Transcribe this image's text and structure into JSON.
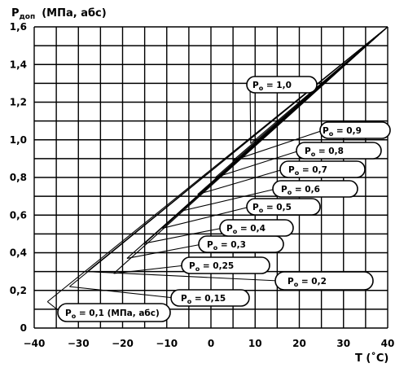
{
  "chart_data": {
    "type": "line",
    "ylabel_main": "P",
    "ylabel_sub": "доп",
    "ylabel_units": "(МПа, абс)",
    "xlabel": "T (˚C)",
    "xlim": [
      -40,
      40
    ],
    "ylim": [
      0,
      1.6
    ],
    "x_ticks": [
      "−40",
      "−30",
      "−20",
      "−10",
      "0",
      "10",
      "20",
      "30",
      "40"
    ],
    "y_ticks": [
      "0",
      "0,2",
      "0,4",
      "0,6",
      "0,8",
      "1,0",
      "1,2",
      "1,4",
      "1,6"
    ],
    "grid": true,
    "converge_point": [
      40,
      1.6
    ],
    "series": [
      {
        "name": "P",
        "sub": "o",
        "text": " = 0,1 (МПа, абс)",
        "start": [
          -37,
          0.14
        ]
      },
      {
        "name": "P",
        "sub": "o",
        "text": " = 0,15",
        "start": [
          -32,
          0.22
        ]
      },
      {
        "name": "P",
        "sub": "o",
        "text": " = 0,2",
        "start": [
          -28,
          0.3
        ]
      },
      {
        "name": "P",
        "sub": "o",
        "text": " = 0,25",
        "start": [
          -22,
          0.29
        ]
      },
      {
        "name": "P",
        "sub": "o",
        "text": " = 0,3",
        "start": [
          -19,
          0.37
        ]
      },
      {
        "name": "P",
        "sub": "o",
        "text": " = 0,4",
        "start": [
          -15,
          0.45
        ]
      },
      {
        "name": "P",
        "sub": "o",
        "text": " = 0,5",
        "start": [
          -11,
          0.53
        ]
      },
      {
        "name": "P",
        "sub": "o",
        "text": " = 0,6",
        "start": [
          -7,
          0.62
        ]
      },
      {
        "name": "P",
        "sub": "o",
        "text": " = 0,7",
        "start": [
          -3,
          0.71
        ]
      },
      {
        "name": "P",
        "sub": "o",
        "text": " = 0,8",
        "start": [
          1,
          0.8
        ]
      },
      {
        "name": "P",
        "sub": "o",
        "text": " = 0,9",
        "start": [
          5,
          0.89
        ]
      },
      {
        "name": "P",
        "sub": "o",
        "text": " = 1,0",
        "start": [
          9,
          0.98
        ]
      }
    ]
  }
}
